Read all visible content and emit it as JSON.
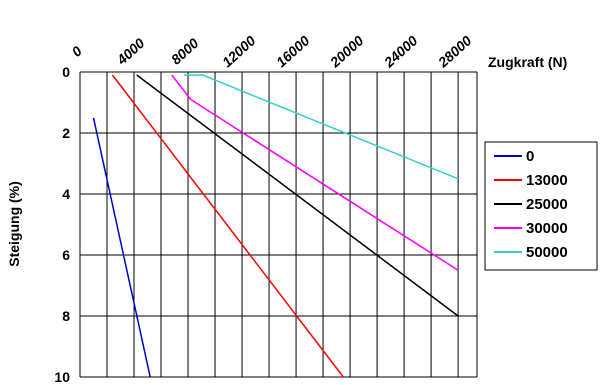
{
  "chart_data": {
    "type": "line",
    "xlabel": "Zugkraft (N)",
    "ylabel": "Steigung (%)",
    "x_ticks": [
      0,
      4000,
      8000,
      12000,
      16000,
      20000,
      24000,
      28000
    ],
    "y_ticks": [
      0,
      2,
      4,
      6,
      8,
      10
    ],
    "xlim": [
      0,
      29400
    ],
    "ylim": [
      10,
      0
    ],
    "x_grid_step": 2000,
    "y_grid_step": 2,
    "grid": true,
    "legend_position": "right",
    "series": [
      {
        "name": "0",
        "color": "#0000cc",
        "points": [
          [
            1000,
            1.5
          ],
          [
            5200,
            10
          ]
        ]
      },
      {
        "name": "13000",
        "color": "#ff0000",
        "points": [
          [
            2400,
            0.1
          ],
          [
            19500,
            10
          ]
        ]
      },
      {
        "name": "25000",
        "color": "#000000",
        "points": [
          [
            4200,
            0.1
          ],
          [
            28000,
            8
          ]
        ]
      },
      {
        "name": "30000",
        "color": "#ff00ff",
        "points": [
          [
            6800,
            0.1
          ],
          [
            8200,
            0.9
          ],
          [
            28000,
            6.5
          ]
        ]
      },
      {
        "name": "50000",
        "color": "#33cccc",
        "points": [
          [
            7700,
            0.1
          ],
          [
            9100,
            0.1
          ],
          [
            10200,
            0.3
          ],
          [
            28000,
            3.5
          ]
        ]
      }
    ]
  }
}
